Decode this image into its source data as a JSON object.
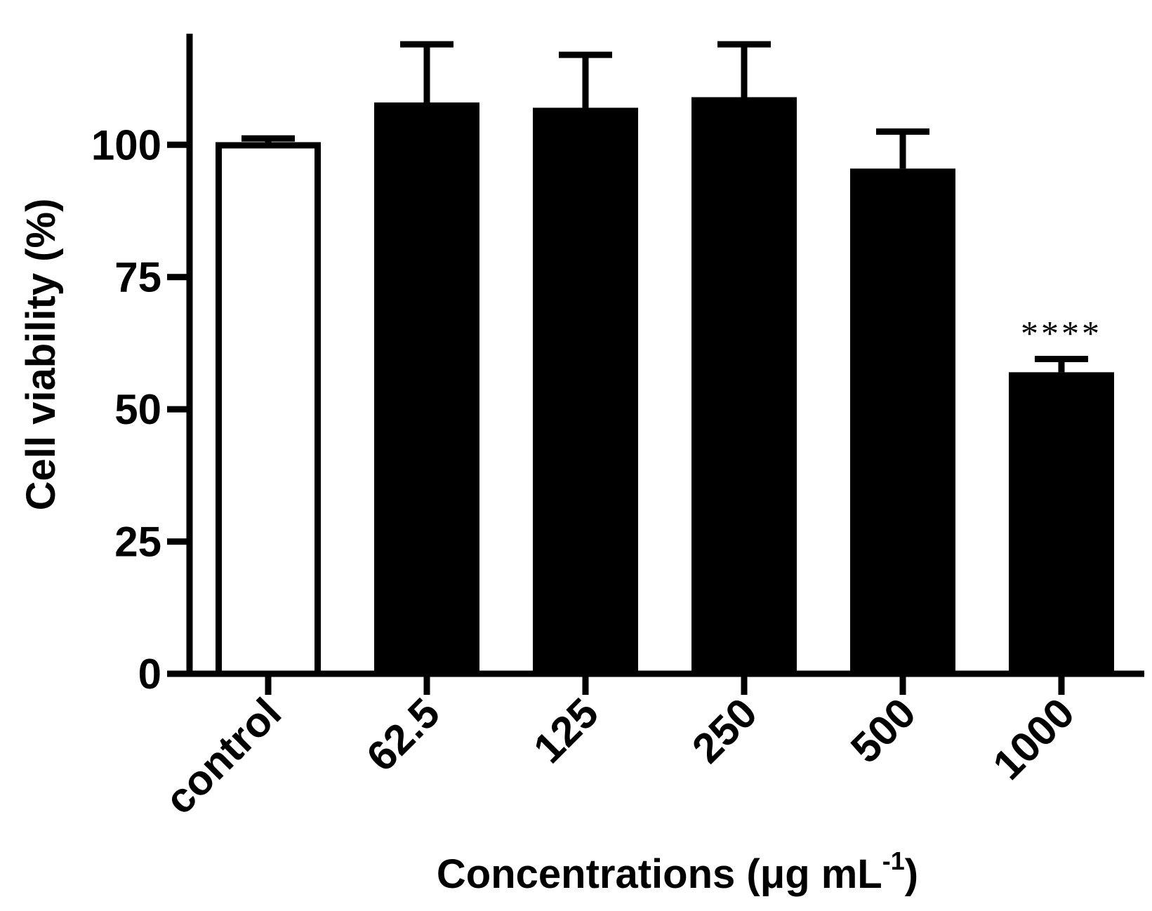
{
  "chart_data": {
    "type": "bar",
    "title": "",
    "xlabel": "Concentrations (μg mL",
    "xlabel_sup": "-1",
    "xlabel_close": ")",
    "ylabel": "Cell viability (%)",
    "categories": [
      "control",
      "62.5",
      "125",
      "250",
      "500",
      "1000"
    ],
    "values": [
      100.5,
      108,
      107,
      109,
      95.5,
      57
    ],
    "errors": [
      0.7,
      11,
      10,
      10,
      7,
      2.5
    ],
    "fill": [
      "open",
      "filled",
      "filled",
      "filled",
      "filled",
      "filled"
    ],
    "ylim": [
      0,
      121
    ],
    "yticks": [
      0,
      25,
      50,
      75,
      100
    ],
    "annotations": [
      {
        "category": "1000",
        "text": "****"
      }
    ],
    "grid": false,
    "legend": "none"
  },
  "colors": {
    "bar": "#000000",
    "open_bar_fill": "#ffffff",
    "axis": "#000000"
  }
}
